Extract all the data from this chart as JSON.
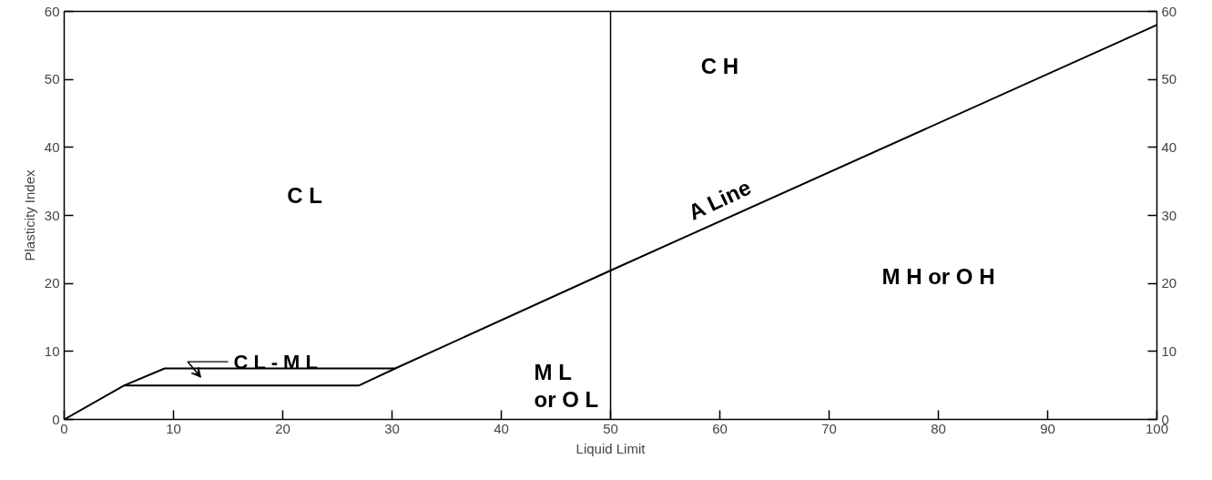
{
  "chart_data": {
    "type": "line",
    "xlabel": "Liquid Limit",
    "ylabel": "Plasticity Index",
    "xlim": [
      0,
      100
    ],
    "ylim": [
      0,
      60
    ],
    "y2lim": [
      0,
      60
    ],
    "xticks": [
      0,
      10,
      20,
      30,
      40,
      50,
      60,
      70,
      80,
      90,
      100
    ],
    "yticks": [
      0,
      10,
      20,
      30,
      40,
      50,
      60
    ],
    "y2ticks": [
      0,
      10,
      20,
      30,
      40,
      50,
      60
    ],
    "grid": false,
    "marker": "none",
    "line_style": "solid",
    "series": [
      {
        "color": "#000000",
        "x": [
          0,
          5.5,
          9.2,
          30.3,
          50,
          100
        ],
        "values": [
          0,
          5,
          7.5,
          7.5,
          21.9,
          58
        ]
      },
      {
        "color": "#000000",
        "x": [
          5.5,
          27,
          30.3
        ],
        "values": [
          5,
          5,
          7.5
        ]
      }
    ],
    "ref_lines": [
      {
        "axis": "x",
        "value": 50,
        "color": "#000000",
        "line_style": "solid"
      }
    ],
    "annotations": [
      "C L",
      "C H",
      "A Line",
      "M H or O H",
      "M L\nor O L",
      "C L - M L"
    ]
  }
}
